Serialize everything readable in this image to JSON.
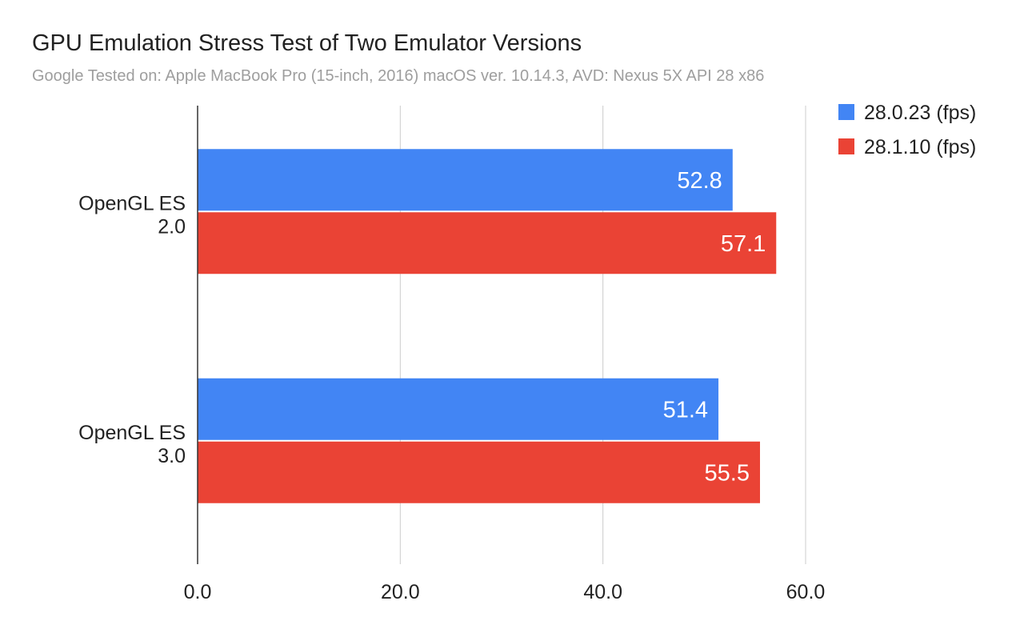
{
  "chart_data": {
    "type": "bar",
    "orientation": "horizontal",
    "title": "GPU Emulation Stress Test of Two Emulator Versions",
    "subtitle": "Google Tested on: Apple MacBook Pro (15-inch, 2016) macOS ver. 10.14.3, AVD: Nexus 5X API 28 x86",
    "categories": [
      [
        "OpenGL ES",
        "2.0"
      ],
      [
        "OpenGL ES",
        "3.0"
      ]
    ],
    "series": [
      {
        "name": "28.0.23 (fps)",
        "color": "#4285f4",
        "values": [
          52.8,
          51.4
        ],
        "labels": [
          "52.8",
          "51.4"
        ]
      },
      {
        "name": "28.1.10 (fps)",
        "color": "#ea4335",
        "values": [
          57.1,
          55.5
        ],
        "labels": [
          "57.1",
          "55.5"
        ]
      }
    ],
    "xlim": [
      0,
      60
    ],
    "xticks": [
      0,
      20,
      40,
      60
    ],
    "xtick_labels": [
      "0.0",
      "20.0",
      "40.0",
      "60.0"
    ],
    "xlabel": "",
    "ylabel": "",
    "grid": true,
    "legend_position": "top-right"
  }
}
